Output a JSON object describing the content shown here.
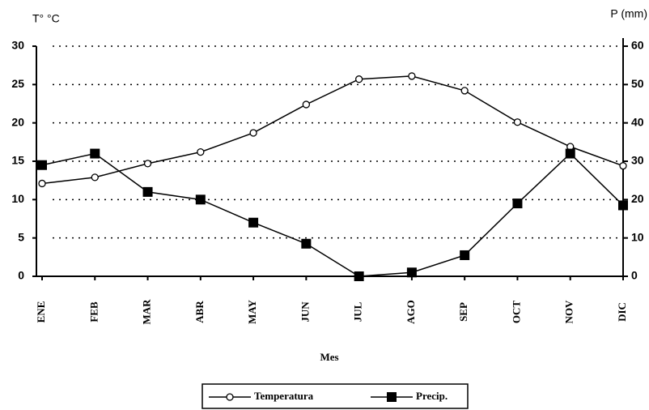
{
  "chart_data": {
    "type": "line",
    "y_label": "T° °C",
    "y2_label": "P (mm)",
    "x_label": "Mes",
    "categories": [
      "ENE",
      "FEB",
      "MAR",
      "ABR",
      "MAY",
      "JUN",
      "JUL",
      "AGO",
      "SEP",
      "OCT",
      "NOV",
      "DIC"
    ],
    "series": [
      {
        "name": "Temperatura",
        "color": "#000000",
        "marker": "circle",
        "values": [
          12.1,
          12.9,
          14.7,
          16.2,
          18.7,
          22.4,
          25.7,
          26.1,
          24.2,
          20.1,
          16.9,
          14.4
        ]
      },
      {
        "name": "Precip.",
        "color": "#000000",
        "marker": "square",
        "axis": "y2",
        "values": [
          29,
          32,
          22,
          20,
          14,
          8.5,
          0,
          1,
          5.5,
          19,
          32,
          18.5
        ]
      }
    ],
    "ylim": [
      0,
      30
    ],
    "yticks": [
      0,
      5,
      10,
      15,
      20,
      25,
      30
    ],
    "y2lim": [
      0,
      60
    ],
    "y2ticks": [
      0,
      10,
      20,
      30,
      40,
      50,
      60
    ],
    "grid": true,
    "legend": "bottom"
  }
}
